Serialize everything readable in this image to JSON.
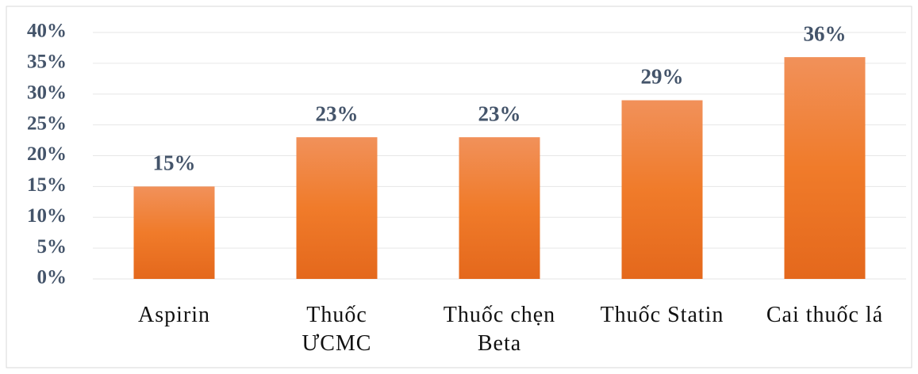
{
  "chart_data": {
    "type": "bar",
    "categories": [
      "Aspirin",
      "Thuốc ƯCMC",
      "Thuốc chẹn Beta",
      "Thuốc Statin",
      "Cai thuốc lá"
    ],
    "values": [
      15,
      23,
      23,
      29,
      36
    ],
    "value_labels": [
      "15%",
      "23%",
      "23%",
      "29%",
      "36%"
    ],
    "color": "#ee7a30",
    "ylim": [
      0,
      40
    ],
    "yticks": [
      {
        "value": 0,
        "label": "0%"
      },
      {
        "value": 5,
        "label": "5%"
      },
      {
        "value": 10,
        "label": "10%"
      },
      {
        "value": 15,
        "label": "15%"
      },
      {
        "value": 20,
        "label": "20%"
      },
      {
        "value": 25,
        "label": "25%"
      },
      {
        "value": 30,
        "label": "30%"
      },
      {
        "value": 35,
        "label": "35%"
      },
      {
        "value": 40,
        "label": "40%"
      }
    ],
    "grid": true
  }
}
